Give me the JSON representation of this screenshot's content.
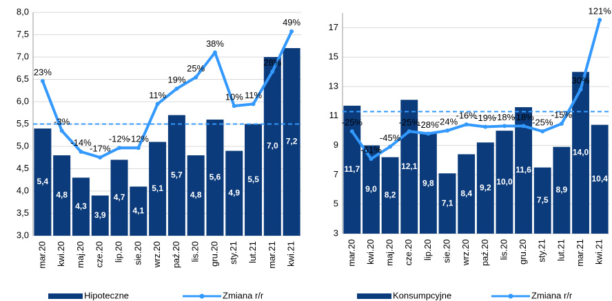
{
  "chart_data": [
    {
      "type": "bar",
      "categories": [
        "mar.20",
        "kwi.20",
        "maj.20",
        "cze.20",
        "lip.20",
        "sie.20",
        "wrz.20",
        "paź.20",
        "lis.20",
        "gru.20",
        "sty.21",
        "lut.21",
        "mar.21",
        "kwi.21"
      ],
      "series": [
        {
          "name": "Hipoteczne",
          "color": "#0b3b7a",
          "values": [
            5.4,
            4.8,
            4.3,
            3.9,
            4.7,
            4.1,
            5.1,
            5.7,
            4.8,
            5.6,
            4.9,
            5.5,
            7.0,
            7.2
          ],
          "value_labels": [
            "5,4",
            "4,8",
            "4,3",
            "3,9",
            "4,7",
            "4,1",
            "5,1",
            "5,7",
            "4,8",
            "5,6",
            "4,9",
            "5,5",
            "7,0",
            "7,2"
          ]
        },
        {
          "name": "Zmiana r/r",
          "type": "line",
          "axis": "y2",
          "color": "#3399ff",
          "values": [
            23,
            -3,
            -14,
            -17,
            -12,
            -12,
            11,
            19,
            25,
            38,
            10,
            11,
            28,
            49
          ],
          "value_labels": [
            "23%",
            "-3%",
            "-14%",
            "-17%",
            "-12%",
            "-12%",
            "11%",
            "19%",
            "25%",
            "38%",
            "10%",
            "11%",
            "28%",
            "49%"
          ]
        }
      ],
      "ylim": [
        3.0,
        8.0
      ],
      "yticks": [
        {
          "value": 3.0,
          "label": "3,0"
        },
        {
          "value": 3.5,
          "label": "3,5"
        },
        {
          "value": 4.0,
          "label": "4,0"
        },
        {
          "value": 4.5,
          "label": "4,5"
        },
        {
          "value": 5.0,
          "label": "5,0"
        },
        {
          "value": 5.5,
          "label": "5,5"
        },
        {
          "value": 6.0,
          "label": "6,0"
        },
        {
          "value": 6.5,
          "label": "6,5"
        },
        {
          "value": 7.0,
          "label": "7,0"
        },
        {
          "value": 7.5,
          "label": "7,5"
        },
        {
          "value": 8.0,
          "label": "8,0"
        }
      ],
      "y2lim": [
        -58,
        59
      ],
      "reference_line": 5.5
    },
    {
      "type": "bar",
      "categories": [
        "mar.20",
        "kwi.20",
        "maj.20",
        "cze.20",
        "lip.20",
        "sie.20",
        "wrz.20",
        "paź.20",
        "lis.20",
        "gru.20",
        "sty.21",
        "lut.21",
        "mar.21",
        "kwi.21"
      ],
      "series": [
        {
          "name": "Konsumpcyjne",
          "color": "#0b3b7a",
          "values": [
            11.7,
            9.0,
            8.2,
            12.1,
            9.8,
            7.1,
            8.4,
            9.2,
            10.0,
            11.6,
            7.5,
            8.9,
            14.0,
            10.4
          ],
          "value_labels": [
            "11,7",
            "9,0",
            "8,2",
            "12,1",
            "9,8",
            "7,1",
            "8,4",
            "9,2",
            "10,0",
            "11,6",
            "7,5",
            "8,9",
            "14,0",
            "10,4"
          ]
        },
        {
          "name": "Zmiana r/r",
          "type": "line",
          "axis": "y2",
          "color": "#3399ff",
          "values": [
            -25,
            -61,
            -45,
            -25,
            -28,
            -24,
            -16,
            -19,
            -18,
            -18,
            -25,
            -15,
            30,
            121
          ],
          "value_labels": [
            "-25%",
            "-61%",
            "-45%",
            "-25%",
            "-28%",
            "-24%",
            "-16%",
            "-19%",
            "-18%",
            "-18%",
            "-25%",
            "-15%",
            "30%",
            "121%"
          ]
        }
      ],
      "ylim": [
        3,
        18
      ],
      "yticks": [
        3,
        5,
        7,
        9,
        11,
        13,
        15,
        17
      ],
      "y2lim": [
        -159,
        130
      ],
      "reference_line": 11.3
    }
  ]
}
